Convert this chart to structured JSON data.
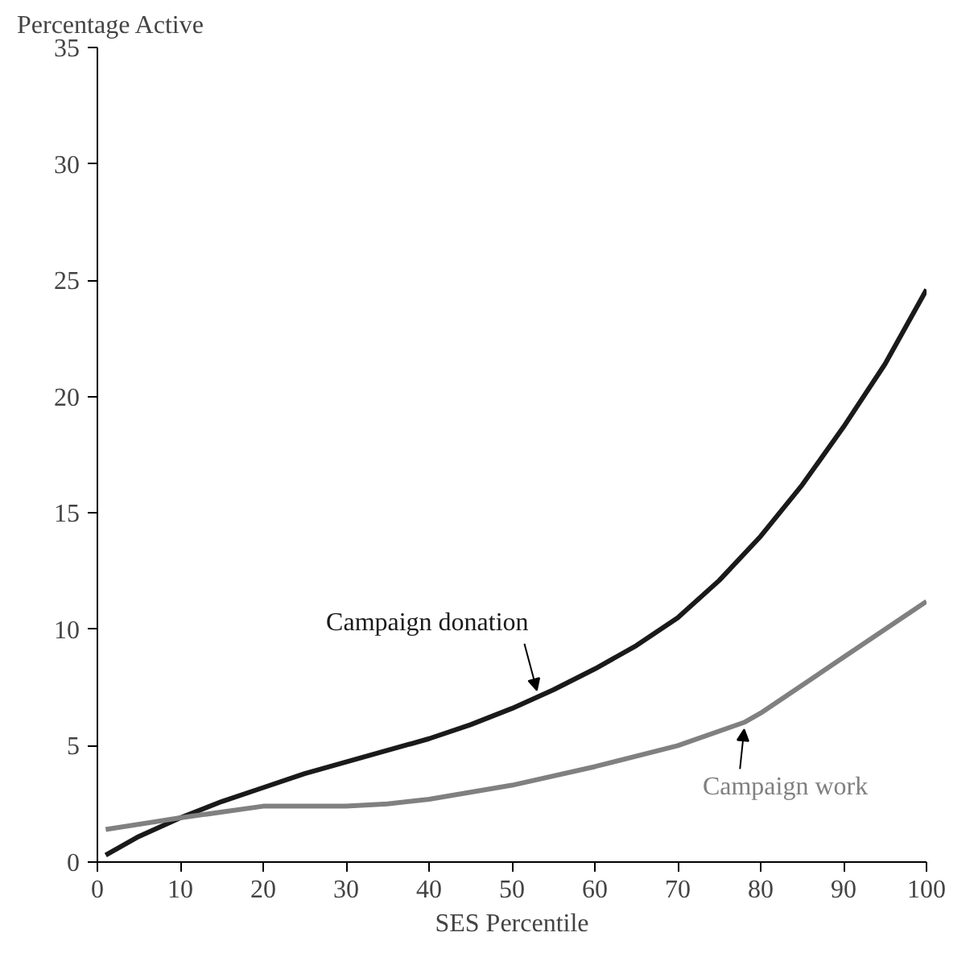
{
  "chart_data": {
    "type": "line",
    "ylabel": "Percentage Active",
    "xlabel": "SES Percentile",
    "xlim": [
      0,
      100
    ],
    "ylim": [
      0,
      35
    ],
    "xticks": [
      0,
      10,
      20,
      30,
      40,
      50,
      60,
      70,
      80,
      90,
      100
    ],
    "yticks": [
      0,
      5,
      10,
      15,
      20,
      25,
      30,
      35
    ],
    "grid": false,
    "marker": "none",
    "line_style": "solid",
    "series": [
      {
        "name": "Campaign donation",
        "color": "#1a1a1a",
        "x": [
          1,
          5,
          10,
          15,
          20,
          25,
          30,
          35,
          40,
          45,
          50,
          55,
          60,
          65,
          70,
          75,
          80,
          85,
          90,
          95,
          100
        ],
        "values": [
          0.3,
          1.1,
          1.9,
          2.6,
          3.2,
          3.8,
          4.3,
          4.8,
          5.3,
          5.9,
          6.6,
          7.4,
          8.3,
          9.3,
          10.5,
          12.1,
          14.0,
          16.2,
          18.7,
          21.4,
          24.6
        ]
      },
      {
        "name": "Campaign work",
        "color": "#808080",
        "x": [
          1,
          10,
          20,
          30,
          35,
          40,
          50,
          60,
          70,
          78,
          80,
          90,
          100
        ],
        "values": [
          1.4,
          1.9,
          2.4,
          2.4,
          2.5,
          2.7,
          3.3,
          4.1,
          5.0,
          6.0,
          6.4,
          8.8,
          11.2
        ]
      }
    ]
  }
}
